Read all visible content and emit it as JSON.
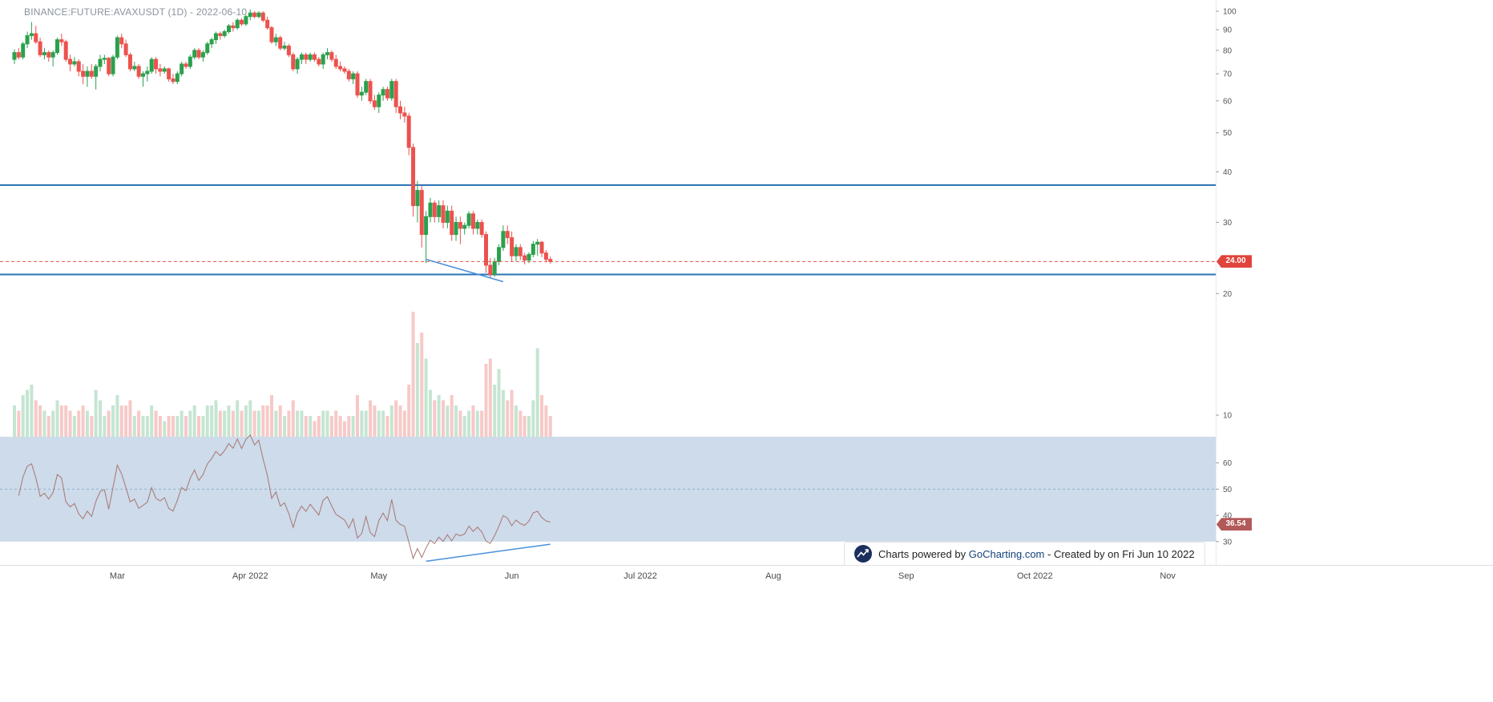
{
  "header": {
    "title": "BINANCE:FUTURE:AVAXUSDT (1D) - 2022-06-10"
  },
  "footer": {
    "powered_prefix": "Charts powered by ",
    "brand_link": "GoCharting.com",
    "created_suffix": " - Created by  on Fri Jun 10 2022"
  },
  "price_axis": {
    "ticks": [
      100,
      90,
      80,
      70,
      60,
      50,
      40,
      30,
      20,
      10
    ],
    "last_price": 24.0,
    "last_price_label": "24.00",
    "badge_color": "#e0443c"
  },
  "rsi_axis": {
    "ticks": [
      60,
      50,
      40,
      30
    ],
    "value": 36.54,
    "value_label": "36.54",
    "badge_color": "#b25959"
  },
  "x_axis": {
    "labels": [
      {
        "text": "Mar",
        "index": 24
      },
      {
        "text": "Apr 2022",
        "index": 55
      },
      {
        "text": "May",
        "index": 85
      },
      {
        "text": "Jun",
        "index": 116
      },
      {
        "text": "Jul 2022",
        "index": 146
      },
      {
        "text": "Aug",
        "index": 177
      },
      {
        "text": "Sep",
        "index": 208
      },
      {
        "text": "Oct 2022",
        "index": 238
      },
      {
        "text": "Nov",
        "index": 269
      }
    ]
  },
  "chart_data": {
    "type": "candlestick",
    "symbol": "BINANCE:FUTURE:AVAXUSDT",
    "interval": "1D",
    "as_of": "2022-06-10",
    "price_scale": "log",
    "ylim": [
      10,
      105
    ],
    "grid": false,
    "columns": [
      "date",
      "open",
      "high",
      "low",
      "close",
      "volume_m"
    ],
    "candles": [
      [
        "2022-02-05",
        76,
        80.5,
        74,
        79,
        6
      ],
      [
        "2022-02-06",
        79,
        81,
        76,
        77,
        5
      ],
      [
        "2022-02-07",
        77,
        84,
        76,
        83,
        8
      ],
      [
        "2022-02-08",
        83,
        89,
        81,
        87,
        9
      ],
      [
        "2022-02-09",
        87,
        94,
        85,
        88,
        10
      ],
      [
        "2022-02-10",
        88,
        92,
        83,
        84,
        7
      ],
      [
        "2022-02-11",
        84,
        86,
        77,
        78,
        6
      ],
      [
        "2022-02-12",
        78,
        81,
        76,
        79,
        5
      ],
      [
        "2022-02-13",
        79,
        80,
        75,
        77,
        4
      ],
      [
        "2022-02-14",
        77,
        80,
        73,
        79,
        5
      ],
      [
        "2022-02-15",
        79,
        86,
        78,
        85,
        7
      ],
      [
        "2022-02-16",
        85,
        88,
        82,
        84,
        6
      ],
      [
        "2022-02-17",
        84,
        85,
        75,
        76,
        6
      ],
      [
        "2022-02-18",
        76,
        78,
        71,
        74,
        5
      ],
      [
        "2022-02-19",
        74,
        77,
        73,
        75,
        4
      ],
      [
        "2022-02-20",
        75,
        76,
        69,
        71,
        5
      ],
      [
        "2022-02-21",
        71,
        74,
        66,
        69,
        6
      ],
      [
        "2022-02-22",
        69,
        73,
        65,
        71,
        5
      ],
      [
        "2022-02-23",
        71,
        74,
        68,
        69,
        4
      ],
      [
        "2022-02-24",
        69,
        74,
        64,
        73,
        9
      ],
      [
        "2022-02-25",
        73,
        78,
        71,
        76,
        7
      ],
      [
        "2022-02-26",
        76,
        78,
        74,
        76.5,
        4
      ],
      [
        "2022-02-27",
        76.5,
        77,
        69,
        70,
        5
      ],
      [
        "2022-02-28",
        70,
        78,
        69,
        77,
        6
      ],
      [
        "2022-03-01",
        77,
        87,
        76,
        86,
        8
      ],
      [
        "2022-03-02",
        86,
        88,
        81,
        83,
        6
      ],
      [
        "2022-03-03",
        83,
        85,
        77,
        78,
        6
      ],
      [
        "2022-03-04",
        78,
        79,
        71,
        72,
        7
      ],
      [
        "2022-03-05",
        72,
        75,
        71,
        73,
        4
      ],
      [
        "2022-03-06",
        73,
        74,
        68,
        69,
        5
      ],
      [
        "2022-03-07",
        69,
        71,
        65,
        70,
        4
      ],
      [
        "2022-03-08",
        70,
        73,
        67,
        71,
        4
      ],
      [
        "2022-03-09",
        71,
        77,
        70,
        76,
        6
      ],
      [
        "2022-03-10",
        76,
        77,
        70,
        72,
        5
      ],
      [
        "2022-03-11",
        72,
        74,
        69,
        71,
        4
      ],
      [
        "2022-03-12",
        71,
        73,
        70,
        72,
        3
      ],
      [
        "2022-03-13",
        72,
        72.5,
        67,
        68,
        4
      ],
      [
        "2022-03-14",
        68,
        70,
        66,
        67,
        4
      ],
      [
        "2022-03-15",
        67,
        71,
        66,
        70,
        4
      ],
      [
        "2022-03-16",
        70,
        75,
        69,
        74,
        5
      ],
      [
        "2022-03-17",
        74,
        75,
        72,
        73,
        4
      ],
      [
        "2022-03-18",
        73,
        78,
        72,
        77,
        5
      ],
      [
        "2022-03-19",
        77,
        81,
        76,
        80,
        6
      ],
      [
        "2022-03-20",
        80,
        81,
        76,
        77,
        4
      ],
      [
        "2022-03-21",
        77,
        80,
        75,
        79,
        4
      ],
      [
        "2022-03-22",
        79,
        84,
        78,
        83,
        6
      ],
      [
        "2022-03-23",
        83,
        86,
        81,
        85,
        6
      ],
      [
        "2022-03-24",
        85,
        89,
        83,
        88,
        7
      ],
      [
        "2022-03-25",
        88,
        89,
        85,
        87,
        5
      ],
      [
        "2022-03-26",
        87,
        90,
        86,
        89,
        5
      ],
      [
        "2022-03-27",
        89,
        93,
        88,
        92,
        6
      ],
      [
        "2022-03-28",
        92,
        94,
        89,
        91,
        5
      ],
      [
        "2022-03-29",
        91,
        96,
        90,
        95,
        7
      ],
      [
        "2022-03-30",
        95,
        96,
        92,
        93,
        5
      ],
      [
        "2022-03-31",
        93,
        98,
        92,
        97,
        6
      ],
      [
        "2022-04-01",
        97,
        101,
        95,
        99,
        7
      ],
      [
        "2022-04-02",
        99,
        100,
        96,
        97,
        5
      ],
      [
        "2022-04-03",
        97,
        100,
        96,
        99,
        5
      ],
      [
        "2022-04-04",
        99,
        100,
        94,
        95,
        6
      ],
      [
        "2022-04-05",
        95,
        97,
        90,
        91,
        6
      ],
      [
        "2022-04-06",
        91,
        92,
        83,
        84,
        8
      ],
      [
        "2022-04-07",
        84,
        88,
        82,
        86,
        5
      ],
      [
        "2022-04-08",
        86,
        87,
        80,
        81,
        6
      ],
      [
        "2022-04-09",
        81,
        84,
        80,
        82,
        4
      ],
      [
        "2022-04-10",
        82,
        83,
        77,
        78,
        5
      ],
      [
        "2022-04-11",
        78,
        79,
        71,
        72,
        7
      ],
      [
        "2022-04-12",
        72,
        77,
        70,
        76,
        5
      ],
      [
        "2022-04-13",
        76,
        79,
        74,
        78,
        5
      ],
      [
        "2022-04-14",
        78,
        79,
        74,
        76,
        4
      ],
      [
        "2022-04-15",
        76,
        79,
        75,
        78,
        4
      ],
      [
        "2022-04-16",
        78,
        79,
        75,
        76,
        3
      ],
      [
        "2022-04-17",
        76,
        77,
        73,
        74,
        4
      ],
      [
        "2022-04-18",
        74,
        79,
        72,
        78,
        5
      ],
      [
        "2022-04-19",
        78,
        81,
        76,
        79,
        5
      ],
      [
        "2022-04-20",
        79,
        80,
        75,
        76,
        4
      ],
      [
        "2022-04-21",
        76,
        78,
        72,
        73,
        5
      ],
      [
        "2022-04-22",
        73,
        75,
        71,
        72,
        4
      ],
      [
        "2022-04-23",
        72,
        73,
        70,
        71,
        3
      ],
      [
        "2022-04-24",
        71,
        72,
        67,
        68,
        4
      ],
      [
        "2022-04-25",
        68,
        71,
        66,
        70,
        4
      ],
      [
        "2022-04-26",
        70,
        71,
        61,
        62,
        8
      ],
      [
        "2022-04-27",
        62,
        65,
        60,
        63,
        5
      ],
      [
        "2022-04-28",
        63,
        68,
        62,
        67,
        5
      ],
      [
        "2022-04-29",
        67,
        68,
        59,
        60,
        7
      ],
      [
        "2022-04-30",
        60,
        62,
        57,
        58,
        6
      ],
      [
        "2022-05-01",
        58,
        63,
        56,
        62,
        5
      ],
      [
        "2022-05-02",
        62,
        65,
        60,
        64,
        5
      ],
      [
        "2022-05-03",
        64,
        65,
        60,
        61,
        4
      ],
      [
        "2022-05-04",
        61,
        68,
        60,
        67,
        6
      ],
      [
        "2022-05-05",
        67,
        68,
        56,
        58,
        7
      ],
      [
        "2022-05-06",
        58,
        60,
        54,
        56,
        6
      ],
      [
        "2022-05-07",
        56,
        58,
        53,
        55,
        5
      ],
      [
        "2022-05-08",
        55,
        56,
        44,
        46,
        10
      ],
      [
        "2022-05-09",
        46,
        47,
        31,
        33,
        24
      ],
      [
        "2022-05-10",
        33,
        38,
        30,
        36,
        18
      ],
      [
        "2022-05-11",
        36,
        37,
        26,
        28,
        20
      ],
      [
        "2022-05-12",
        28,
        32,
        23.8,
        31,
        15
      ],
      [
        "2022-05-13",
        31,
        34.5,
        30,
        33.5,
        9
      ],
      [
        "2022-05-14",
        33.5,
        34,
        30,
        31,
        7
      ],
      [
        "2022-05-15",
        31,
        34,
        30,
        33,
        8
      ],
      [
        "2022-05-16",
        33,
        34,
        29,
        30,
        7
      ],
      [
        "2022-05-17",
        30,
        33,
        29,
        32,
        6
      ],
      [
        "2022-05-18",
        32,
        33,
        27,
        28,
        8
      ],
      [
        "2022-05-19",
        28,
        31,
        27,
        30,
        6
      ],
      [
        "2022-05-20",
        30,
        31,
        26.5,
        29,
        5
      ],
      [
        "2022-05-21",
        29,
        30,
        28,
        29.5,
        4
      ],
      [
        "2022-05-22",
        29.5,
        32,
        29,
        31.5,
        5
      ],
      [
        "2022-05-23",
        31.5,
        32,
        28,
        29,
        6
      ],
      [
        "2022-05-24",
        29,
        30.5,
        28,
        30,
        5
      ],
      [
        "2022-05-25",
        30,
        30.5,
        27.5,
        28,
        5
      ],
      [
        "2022-05-26",
        28,
        28.5,
        22.5,
        23.5,
        14
      ],
      [
        "2022-05-27",
        23.5,
        24.5,
        21.8,
        22.3,
        15
      ],
      [
        "2022-05-28",
        22.3,
        24.5,
        22,
        24,
        10
      ],
      [
        "2022-05-29",
        24,
        26.5,
        23.5,
        26,
        13
      ],
      [
        "2022-05-30",
        26,
        29.5,
        25.5,
        28.5,
        9
      ],
      [
        "2022-05-31",
        28.5,
        29.5,
        26.5,
        27.5,
        7
      ],
      [
        "2022-06-01",
        27.5,
        28.5,
        24,
        24.8,
        9
      ],
      [
        "2022-06-02",
        24.8,
        26.5,
        24,
        26,
        6
      ],
      [
        "2022-06-03",
        26,
        26.5,
        24.2,
        24.8,
        5
      ],
      [
        "2022-06-04",
        24.8,
        25.2,
        23.6,
        24.2,
        4
      ],
      [
        "2022-06-05",
        24.2,
        25.3,
        23.8,
        25,
        4
      ],
      [
        "2022-06-06",
        25,
        27,
        24.6,
        26.5,
        7
      ],
      [
        "2022-06-07",
        26.5,
        27.3,
        24.8,
        26.8,
        17
      ],
      [
        "2022-06-08",
        26.8,
        27,
        24.6,
        25.2,
        8
      ],
      [
        "2022-06-09",
        25.2,
        25.6,
        23.9,
        24.3,
        6
      ],
      [
        "2022-06-10",
        24.3,
        24.7,
        23.7,
        24.0,
        4
      ]
    ],
    "horizontal_lines": [
      {
        "price": 37.1,
        "color": "#2e74b5"
      },
      {
        "price": 22.3,
        "color": "#2e74b5"
      }
    ],
    "last_price_line": {
      "price": 24.0,
      "style": "dashed",
      "color": "#e2564f"
    },
    "trendlines": [
      {
        "pane": "price",
        "from": {
          "index": 96,
          "price": 24.3
        },
        "to": {
          "index": 114,
          "price": 21.4
        },
        "color": "#4a90d9"
      },
      {
        "pane": "rsi",
        "from": {
          "index": 96,
          "value": 22.5
        },
        "to": {
          "index": 125,
          "value": 29
        },
        "color": "#4a90d9"
      }
    ],
    "indicators": [
      {
        "name": "RSI",
        "period": 14,
        "current": 36.54,
        "band": [
          30,
          70
        ],
        "mid": 50
      }
    ],
    "colors": {
      "up": "#2aa14d",
      "down": "#ec524e",
      "vol_up": "#c5e5d2",
      "vol_down": "#f6c9c7",
      "rsi_line": "#a87572",
      "band_fill": "#bccfe3",
      "mid_dash": "#8fb0cf",
      "axis_text": "#555555",
      "separator": "#d9dde2"
    }
  }
}
